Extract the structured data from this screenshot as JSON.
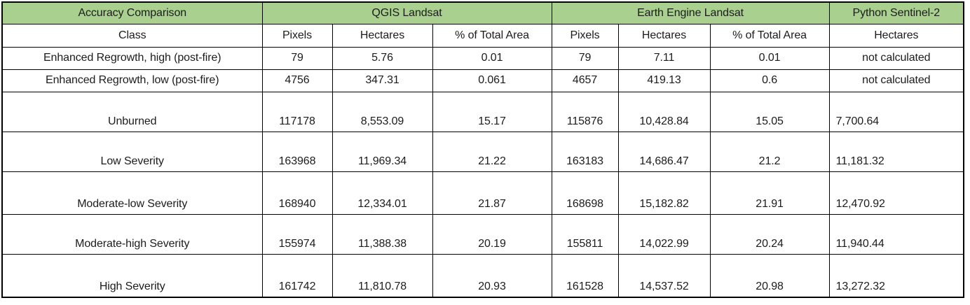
{
  "table": {
    "title": "Accuracy Comparison",
    "groups": [
      "QGIS Landsat",
      "Earth Engine Landsat",
      "Python Sentinel-2"
    ],
    "columns": [
      "Class",
      "Pixels",
      "Hectares",
      "% of Total Area",
      "Pixels",
      "Hectares",
      "% of Total Area",
      "Hectares"
    ],
    "rows": [
      [
        "Enhanced Regrowth, high (post-fire)",
        "79",
        "5.76",
        "0.01",
        "79",
        "7.11",
        "0.01",
        "not calculated"
      ],
      [
        "Enhanced Regrowth, low (post-fire)",
        "4756",
        "347.31",
        "0.061",
        "4657",
        "419.13",
        "0.6",
        "not calculated"
      ],
      [
        "Unburned",
        "117178",
        "8,553.09",
        "15.17",
        "115876",
        "10,428.84",
        "15.05",
        "7,700.64"
      ],
      [
        "Low Severity",
        "163968",
        "11,969.34",
        "21.22",
        "163183",
        "14,686.47",
        "21.2",
        "11,181.32"
      ],
      [
        "Moderate-low Severity",
        "168940",
        "12,334.01",
        "21.87",
        "168698",
        "15,182.82",
        "21.91",
        "12,470.92"
      ],
      [
        "Moderate-high Severity",
        "155974",
        "11,388.38",
        "20.19",
        "155811",
        "14,022.99",
        "20.24",
        "11,940.44"
      ],
      [
        "High Severity",
        "161742",
        "11,810.78",
        "20.93",
        "161528",
        "14,537.52",
        "20.98",
        "13,272.32"
      ]
    ],
    "colors": {
      "header_fill": "#A9D08E",
      "border": "#000000",
      "text": "#1c1c1c",
      "background": "#ffffff"
    }
  }
}
